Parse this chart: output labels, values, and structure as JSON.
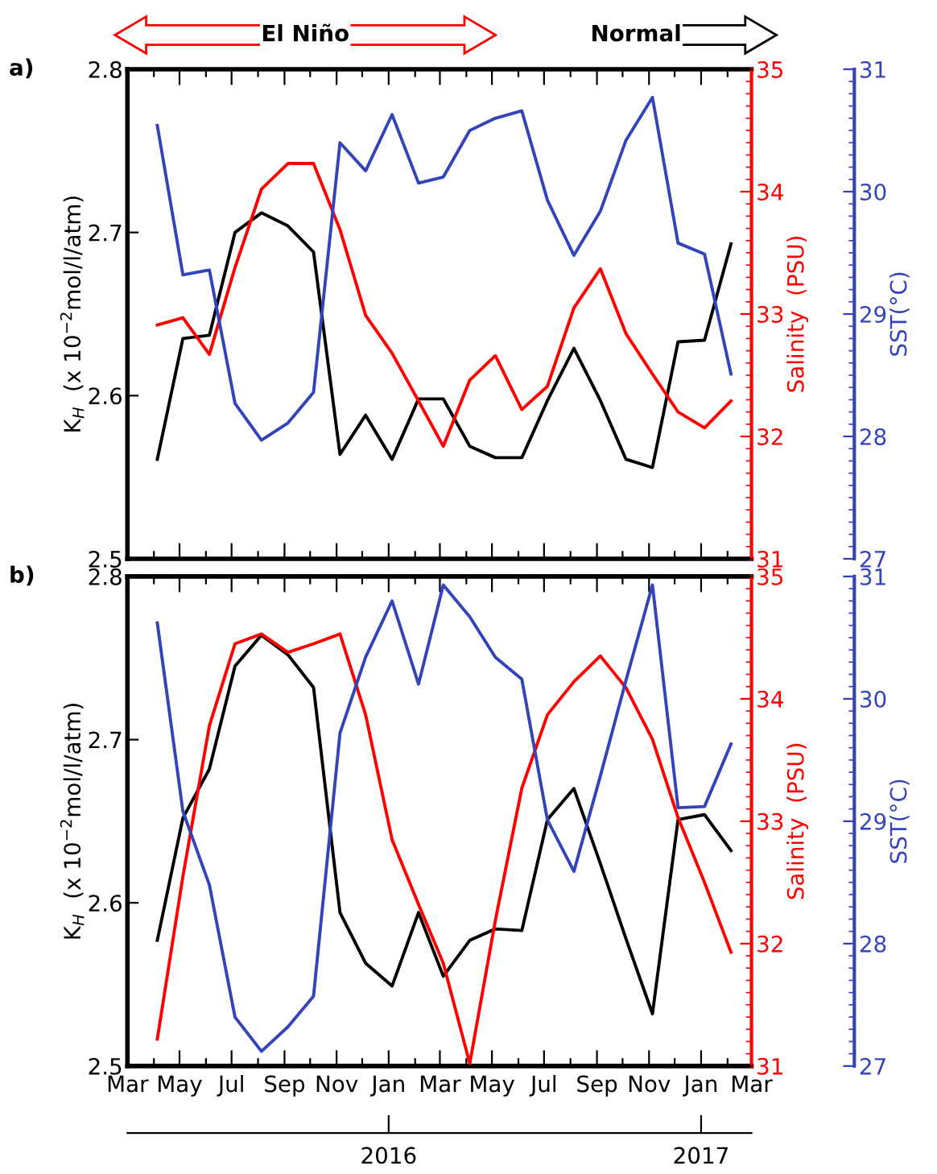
{
  "chart_data": [
    {
      "type": "line",
      "title": "a)",
      "x": [
        "2015-04-05",
        "2015-05-05",
        "2015-06-05",
        "2015-07-05",
        "2015-08-05",
        "2015-09-05",
        "2015-10-05",
        "2015-11-05",
        "2015-12-05",
        "2016-01-05",
        "2016-02-05",
        "2016-03-05",
        "2016-04-05",
        "2016-05-05",
        "2016-06-05",
        "2016-07-05",
        "2016-08-05",
        "2016-09-05",
        "2016-10-05",
        "2016-11-05",
        "2016-12-05",
        "2017-01-05",
        "2017-02-05"
      ],
      "ylabel": "K$_{H}$  (x 10$^{−2}$mol/l/atm)",
      "y2label": "Salinity  (PSU)",
      "y3label": "SST(°C)",
      "series": [
        {
          "color": "#000000",
          "axis": "y",
          "values": [
            2.561,
            2.635,
            2.637,
            2.7,
            2.712,
            2.704,
            2.688,
            2.564,
            2.588,
            2.561,
            2.598,
            2.598,
            2.569,
            2.562,
            2.562,
            2.597,
            2.629,
            2.597,
            2.561,
            2.556,
            2.633,
            2.634,
            2.693
          ]
        },
        {
          "color": "#ff0000",
          "axis": "y2",
          "values": [
            32.91,
            32.97,
            32.67,
            33.38,
            34.02,
            34.23,
            34.23,
            33.69,
            32.99,
            32.68,
            32.29,
            31.92,
            32.46,
            32.66,
            32.22,
            32.41,
            33.05,
            33.37,
            32.84,
            32.51,
            32.2,
            32.07,
            32.29
          ]
        },
        {
          "color": "#3344bb",
          "axis": "y3",
          "values": [
            30.54,
            29.32,
            29.36,
            28.27,
            27.97,
            28.11,
            28.36,
            30.4,
            30.17,
            30.63,
            30.07,
            30.12,
            30.5,
            30.6,
            30.66,
            29.93,
            29.48,
            29.84,
            30.42,
            30.77,
            29.58,
            29.49,
            28.51
          ]
        }
      ],
      "xlim": [
        "2015-03-01",
        "2017-03-01"
      ],
      "ylim": [
        2.5,
        2.8
      ],
      "yticks": [
        2.5,
        2.6,
        2.7,
        2.8
      ],
      "y2lim": [
        31,
        35
      ],
      "y2ticks": [
        31,
        32,
        33,
        34,
        35
      ],
      "y3lim": [
        27,
        31
      ],
      "y3ticks": [
        27,
        28,
        29,
        30,
        31
      ],
      "tick_labels": "y",
      "annotations": [
        "El Niño",
        "Normal"
      ]
    },
    {
      "type": "line",
      "title": "b)",
      "x": [
        "2015-04-05",
        "2015-05-05",
        "2015-06-05",
        "2015-07-05",
        "2015-08-05",
        "2015-09-05",
        "2015-10-05",
        "2015-11-05",
        "2015-12-05",
        "2016-01-05",
        "2016-02-05",
        "2016-03-05",
        "2016-04-05",
        "2016-05-05",
        "2016-06-05",
        "2016-07-05",
        "2016-08-05",
        "2016-09-05",
        "2016-10-05",
        "2016-11-05",
        "2016-12-05",
        "2017-01-05",
        "2017-02-05"
      ],
      "ylabel": "K$_{H}$  (x 10$^{−2}$mol/l/atm)",
      "y2label": "Salinity  (PSU)",
      "y3label": "SST(°C)",
      "series": [
        {
          "color": "#000000",
          "axis": "y",
          "values": [
            2.577,
            2.652,
            2.682,
            2.745,
            2.764,
            2.752,
            2.732,
            2.594,
            2.563,
            2.549,
            2.594,
            2.555,
            2.577,
            2.584,
            2.583,
            2.651,
            2.67,
            2.624,
            2.578,
            2.532,
            2.651,
            2.654,
            2.632
          ]
        },
        {
          "color": "#ff0000",
          "axis": "y2",
          "values": [
            31.22,
            32.55,
            33.78,
            34.45,
            34.53,
            34.38,
            34.45,
            34.53,
            33.87,
            32.85,
            32.32,
            31.84,
            31.02,
            32.19,
            33.27,
            33.87,
            34.14,
            34.35,
            34.09,
            33.67,
            33.03,
            32.5,
            31.93
          ]
        },
        {
          "color": "#3344bb",
          "axis": "y3",
          "values": [
            30.62,
            29.08,
            28.48,
            27.4,
            27.12,
            27.32,
            27.57,
            29.72,
            30.34,
            30.8,
            30.12,
            30.93,
            30.67,
            30.34,
            30.16,
            29.01,
            28.59,
            29.37,
            30.15,
            30.93,
            29.11,
            29.12,
            29.63
          ]
        }
      ],
      "xlim": [
        "2015-03-01",
        "2017-03-01"
      ],
      "xticks": [
        {
          "value": "2015-03-01",
          "label": "Mar"
        },
        {
          "value": "2015-04-01",
          "label": null
        },
        {
          "value": "2015-05-01",
          "label": "May"
        },
        {
          "value": "2015-06-01",
          "label": null
        },
        {
          "value": "2015-07-01",
          "label": "Jul"
        },
        {
          "value": "2015-08-01",
          "label": null
        },
        {
          "value": "2015-09-01",
          "label": "Sep"
        },
        {
          "value": "2015-10-01",
          "label": null
        },
        {
          "value": "2015-11-01",
          "label": "Nov"
        },
        {
          "value": "2015-12-01",
          "label": null
        },
        {
          "value": "2016-01-01",
          "label": "Jan"
        },
        {
          "value": "2016-02-01",
          "label": null
        },
        {
          "value": "2016-03-01",
          "label": "Mar"
        },
        {
          "value": "2016-04-01",
          "label": null
        },
        {
          "value": "2016-05-01",
          "label": "May"
        },
        {
          "value": "2016-06-01",
          "label": null
        },
        {
          "value": "2016-07-01",
          "label": "Jul"
        },
        {
          "value": "2016-08-01",
          "label": null
        },
        {
          "value": "2016-09-01",
          "label": "Sep"
        },
        {
          "value": "2016-10-01",
          "label": null
        },
        {
          "value": "2016-11-01",
          "label": "Nov"
        },
        {
          "value": "2016-12-01",
          "label": null
        },
        {
          "value": "2017-01-01",
          "label": "Jan"
        },
        {
          "value": "2017-02-01",
          "label": null
        },
        {
          "value": "2017-03-01",
          "label": "Mar"
        }
      ],
      "x2lim": [
        "2015-03-01",
        "2017-03-01"
      ],
      "x2ticks": [
        {
          "value": "2016-01-01",
          "label": "2016"
        },
        {
          "value": "2017-01-01",
          "label": "2017"
        }
      ],
      "ylim": [
        2.5,
        2.8
      ],
      "yticks": [
        2.5,
        2.6,
        2.7,
        2.8
      ],
      "y2lim": [
        31,
        35
      ],
      "y2ticks": [
        31,
        32,
        33,
        34,
        35
      ],
      "y3lim": [
        27,
        31
      ],
      "y3ticks": [
        27,
        28,
        29,
        30,
        31
      ]
    }
  ]
}
